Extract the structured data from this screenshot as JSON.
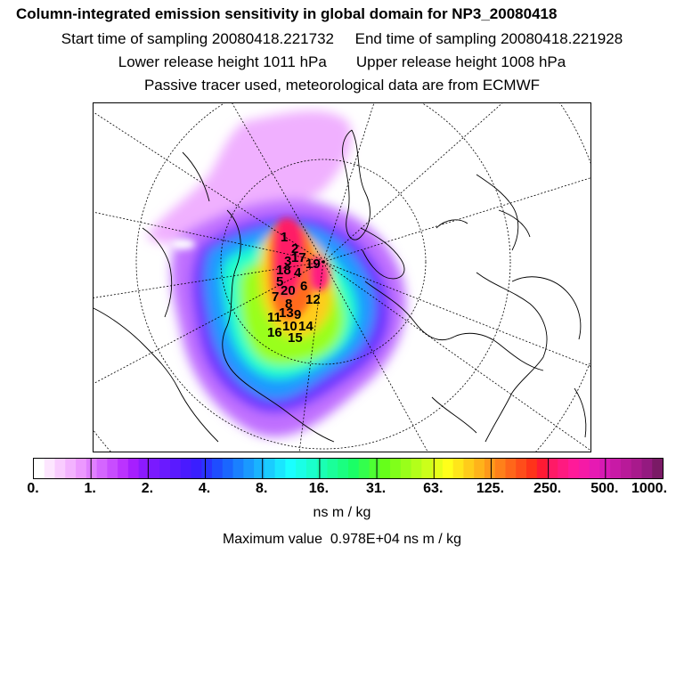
{
  "header": {
    "title": "Column-integrated emission sensitivity in global domain for NP3_20080418",
    "line2": "Start time of sampling 20080418.221732     End time of sampling 20080418.221928",
    "line3": "Lower release height 1011 hPa       Upper release height 1008 hPa",
    "line4": "Passive tracer used, meteorological data are from ECMWF"
  },
  "colorbar": {
    "tick_labels": [
      "0.",
      "1.",
      "2.",
      "4.",
      "8.",
      "16.",
      "31.",
      "63.",
      "125.",
      "250.",
      "500.",
      "1000."
    ],
    "colors": [
      "#ffffff",
      "#fde6ff",
      "#f9ccff",
      "#f3b3ff",
      "#ec99ff",
      "#e080ff",
      "#d466ff",
      "#c84dff",
      "#bb33ff",
      "#a61fff",
      "#8c1aff",
      "#7a1aff",
      "#6a1aff",
      "#5a1aff",
      "#4a1aff",
      "#3a1fff",
      "#2a33ff",
      "#1f4dff",
      "#1a66ff",
      "#1a80ff",
      "#1a99ff",
      "#1ab3ff",
      "#1accff",
      "#1ae6ff",
      "#1affff",
      "#1affe6",
      "#1affcc",
      "#1affb3",
      "#1aff99",
      "#1aff80",
      "#1aff66",
      "#33ff4d",
      "#4dff33",
      "#66ff1a",
      "#80ff1a",
      "#99ff1a",
      "#b3ff1a",
      "#ccff1a",
      "#e6ff1a",
      "#ffff1a",
      "#ffe61a",
      "#ffcc1a",
      "#ffb31a",
      "#ff991a",
      "#ff801a",
      "#ff661a",
      "#ff4d1a",
      "#ff331a",
      "#ff1a33",
      "#ff1a66",
      "#ff1a80",
      "#ff1a99",
      "#f51aa6",
      "#e61ab3",
      "#d61ab3",
      "#c81aa6",
      "#b81a99",
      "#a81a8c",
      "#941a80",
      "#7a1a66"
    ],
    "units": "ns m / kg"
  },
  "max_value_text": "Maximum value  0.978E+04 ns m / kg",
  "map": {
    "projection": "polar stereographic (north pole)",
    "plume_numbers": [
      "1",
      "2",
      "3",
      "4",
      "5",
      "6",
      "7",
      "8",
      "9",
      "10",
      "11",
      "12",
      "13",
      "14",
      "15",
      "16",
      "17",
      "18",
      "19",
      "20"
    ]
  }
}
